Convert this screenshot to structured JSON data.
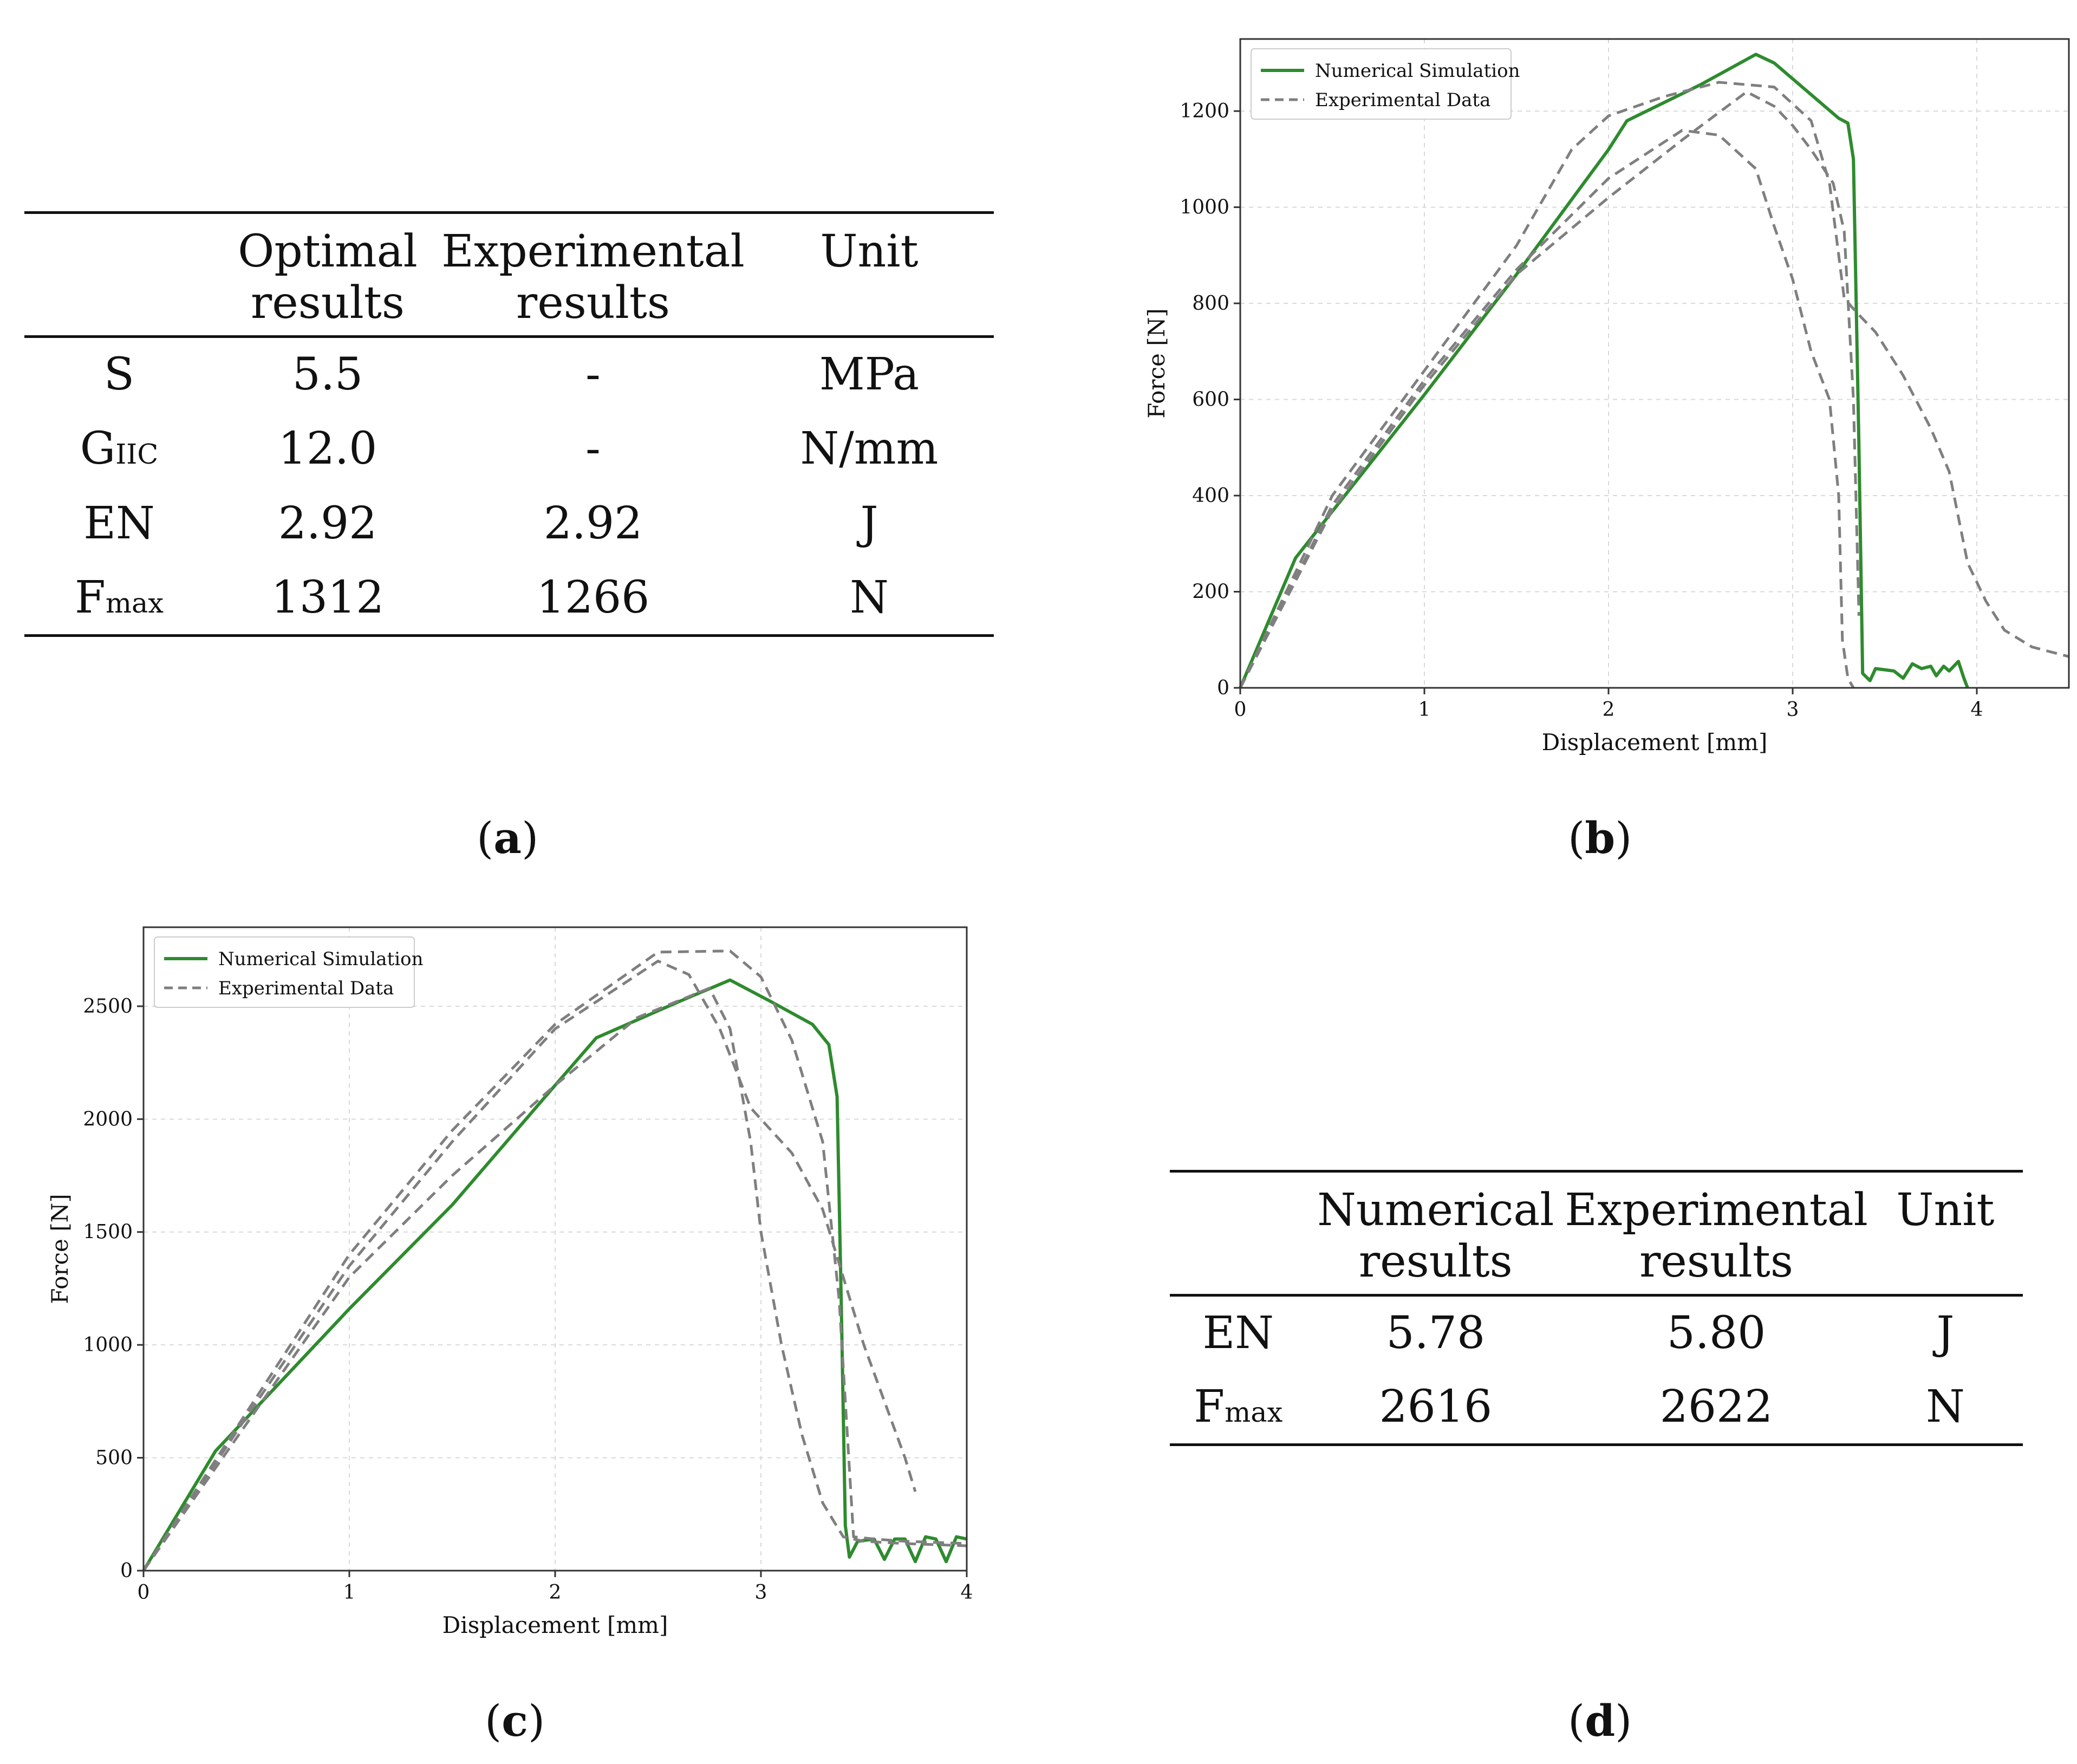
{
  "table_a": {
    "headers": [
      [
        "",
        "Optimal",
        "Experimental",
        "Unit"
      ],
      [
        "",
        "results",
        "results",
        ""
      ]
    ],
    "rows": [
      {
        "main": "S",
        "sub": "",
        "values": [
          "5.5",
          "-",
          "MPa"
        ]
      },
      {
        "main": "G",
        "sub": "IIC",
        "values": [
          "12.0",
          "-",
          "N/mm"
        ]
      },
      {
        "main": "EN",
        "sub": "",
        "values": [
          "2.92",
          "2.92",
          "J"
        ]
      },
      {
        "main": "F",
        "sub": "max",
        "values": [
          "1312",
          "1266",
          "N"
        ]
      }
    ]
  },
  "table_d": {
    "headers": [
      [
        "",
        "Numerical",
        "Experimental",
        "Unit"
      ],
      [
        "",
        "results",
        "results",
        ""
      ]
    ],
    "rows": [
      {
        "main": "EN",
        "sub": "",
        "values": [
          "5.78",
          "5.80",
          "J"
        ]
      },
      {
        "main": "F",
        "sub": "max",
        "values": [
          "2616",
          "2622",
          "N"
        ]
      }
    ]
  },
  "captions": {
    "a": "a",
    "b": "b",
    "c": "c",
    "d": "d"
  },
  "colors": {
    "numerical": "#2e8b2e",
    "experimental": "#7f7f7f",
    "grid": "#d9d9d9",
    "frame": "#333333"
  },
  "chart_data": [
    {
      "type": "line",
      "panel": "b",
      "xlabel": "Displacement [mm]",
      "ylabel": "Force [N]",
      "xlim": [
        0,
        4.5
      ],
      "ylim": [
        0,
        1350
      ],
      "xticks": [
        0,
        1,
        2,
        3,
        4
      ],
      "yticks": [
        0,
        200,
        400,
        600,
        800,
        1000,
        1200
      ],
      "grid": true,
      "legend": "top-left",
      "series": [
        {
          "name": "Numerical Simulation",
          "style": "solid",
          "points": [
            [
              0,
              0
            ],
            [
              0.3,
              270
            ],
            [
              1.0,
              610
            ],
            [
              1.5,
              860
            ],
            [
              2.0,
              1120
            ],
            [
              2.1,
              1180
            ],
            [
              2.5,
              1255
            ],
            [
              2.8,
              1318
            ],
            [
              2.9,
              1300
            ],
            [
              3.25,
              1185
            ],
            [
              3.3,
              1175
            ],
            [
              3.33,
              1100
            ],
            [
              3.36,
              500
            ],
            [
              3.38,
              30
            ],
            [
              3.42,
              15
            ],
            [
              3.45,
              40
            ],
            [
              3.55,
              35
            ],
            [
              3.6,
              20
            ],
            [
              3.65,
              50
            ],
            [
              3.7,
              40
            ],
            [
              3.75,
              45
            ],
            [
              3.78,
              25
            ],
            [
              3.82,
              45
            ],
            [
              3.85,
              35
            ],
            [
              3.9,
              55
            ],
            [
              3.93,
              20
            ],
            [
              3.95,
              0
            ]
          ]
        },
        {
          "name": "Experimental Data",
          "style": "dashed",
          "points": [
            [
              0,
              0
            ],
            [
              0.5,
              400
            ],
            [
              1.0,
              660
            ],
            [
              1.5,
              920
            ],
            [
              1.8,
              1120
            ],
            [
              2.0,
              1190
            ],
            [
              2.3,
              1230
            ],
            [
              2.6,
              1260
            ],
            [
              2.9,
              1250
            ],
            [
              3.1,
              1180
            ],
            [
              3.2,
              1050
            ],
            [
              3.28,
              810
            ],
            [
              3.35,
              780
            ],
            [
              3.45,
              740
            ],
            [
              3.6,
              650
            ],
            [
              3.75,
              540
            ],
            [
              3.85,
              450
            ],
            [
              3.95,
              260
            ],
            [
              4.05,
              180
            ],
            [
              4.15,
              120
            ],
            [
              4.3,
              85
            ],
            [
              4.5,
              65
            ]
          ]
        },
        {
          "name": "Experimental Data",
          "style": "dashed",
          "points": [
            [
              0,
              0
            ],
            [
              0.5,
              380
            ],
            [
              1.0,
              640
            ],
            [
              1.5,
              870
            ],
            [
              2.0,
              1060
            ],
            [
              2.4,
              1160
            ],
            [
              2.6,
              1150
            ],
            [
              2.8,
              1080
            ],
            [
              2.9,
              960
            ],
            [
              3.0,
              850
            ],
            [
              3.1,
              700
            ],
            [
              3.2,
              600
            ],
            [
              3.25,
              400
            ],
            [
              3.27,
              100
            ],
            [
              3.3,
              20
            ],
            [
              3.33,
              0
            ]
          ]
        },
        {
          "name": "Experimental Data",
          "style": "dashed",
          "points": [
            [
              0,
              0
            ],
            [
              0.5,
              370
            ],
            [
              1.0,
              630
            ],
            [
              1.5,
              860
            ],
            [
              2.0,
              1020
            ],
            [
              2.4,
              1140
            ],
            [
              2.75,
              1240
            ],
            [
              2.9,
              1210
            ],
            [
              3.0,
              1170
            ],
            [
              3.1,
              1120
            ],
            [
              3.22,
              1050
            ],
            [
              3.28,
              950
            ],
            [
              3.33,
              600
            ],
            [
              3.35,
              300
            ],
            [
              3.36,
              150
            ]
          ]
        }
      ]
    },
    {
      "type": "line",
      "panel": "c",
      "xlabel": "Displacement [mm]",
      "ylabel": "Force [N]",
      "xlim": [
        0,
        4
      ],
      "ylim": [
        0,
        2850
      ],
      "xticks": [
        0,
        1,
        2,
        3,
        4
      ],
      "yticks": [
        0,
        500,
        1000,
        1500,
        2000,
        2500
      ],
      "grid": true,
      "legend": "top-left",
      "series": [
        {
          "name": "Numerical Simulation",
          "style": "solid",
          "points": [
            [
              0,
              0
            ],
            [
              0.35,
              530
            ],
            [
              1.0,
              1160
            ],
            [
              1.5,
              1620
            ],
            [
              2.0,
              2150
            ],
            [
              2.2,
              2360
            ],
            [
              2.6,
              2520
            ],
            [
              2.85,
              2616
            ],
            [
              3.05,
              2520
            ],
            [
              3.25,
              2420
            ],
            [
              3.33,
              2330
            ],
            [
              3.37,
              2100
            ],
            [
              3.39,
              1200
            ],
            [
              3.41,
              200
            ],
            [
              3.43,
              60
            ],
            [
              3.47,
              130
            ],
            [
              3.55,
              140
            ],
            [
              3.6,
              50
            ],
            [
              3.65,
              140
            ],
            [
              3.7,
              140
            ],
            [
              3.75,
              40
            ],
            [
              3.8,
              150
            ],
            [
              3.85,
              140
            ],
            [
              3.9,
              40
            ],
            [
              3.95,
              150
            ],
            [
              4.0,
              140
            ]
          ]
        },
        {
          "name": "Experimental Data",
          "style": "dashed",
          "points": [
            [
              0,
              0
            ],
            [
              0.5,
              700
            ],
            [
              1.0,
              1400
            ],
            [
              1.5,
              1950
            ],
            [
              2.0,
              2420
            ],
            [
              2.5,
              2740
            ],
            [
              2.85,
              2745
            ],
            [
              3.0,
              2630
            ],
            [
              3.15,
              2350
            ],
            [
              3.3,
              1900
            ],
            [
              3.38,
              1200
            ],
            [
              3.45,
              150
            ],
            [
              3.55,
              140
            ],
            [
              3.7,
              130
            ],
            [
              4.0,
              120
            ]
          ]
        },
        {
          "name": "Experimental Data",
          "style": "dashed",
          "points": [
            [
              0,
              0
            ],
            [
              0.5,
              680
            ],
            [
              1.0,
              1350
            ],
            [
              1.5,
              1900
            ],
            [
              2.0,
              2400
            ],
            [
              2.5,
              2700
            ],
            [
              2.65,
              2640
            ],
            [
              2.8,
              2400
            ],
            [
              2.95,
              2050
            ],
            [
              3.05,
              1950
            ],
            [
              3.15,
              1850
            ],
            [
              3.3,
              1600
            ],
            [
              3.4,
              1300
            ],
            [
              3.5,
              1000
            ],
            [
              3.6,
              750
            ],
            [
              3.7,
              500
            ],
            [
              3.75,
              350
            ]
          ]
        },
        {
          "name": "Experimental Data",
          "style": "dashed",
          "points": [
            [
              0,
              0
            ],
            [
              0.5,
              650
            ],
            [
              1.0,
              1300
            ],
            [
              1.5,
              1750
            ],
            [
              2.0,
              2150
            ],
            [
              2.4,
              2450
            ],
            [
              2.75,
              2580
            ],
            [
              2.85,
              2400
            ],
            [
              2.95,
              1900
            ],
            [
              3.0,
              1500
            ],
            [
              3.1,
              1000
            ],
            [
              3.2,
              600
            ],
            [
              3.3,
              300
            ],
            [
              3.4,
              150
            ],
            [
              3.5,
              130
            ],
            [
              3.7,
              120
            ],
            [
              4.0,
              110
            ]
          ]
        }
      ]
    }
  ]
}
